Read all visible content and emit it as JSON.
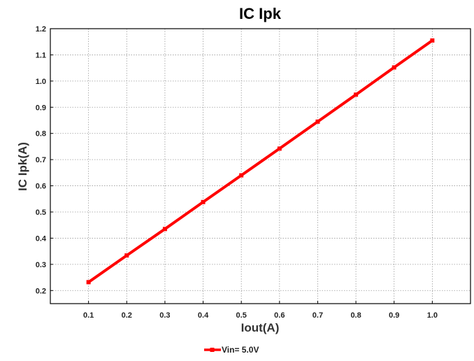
{
  "chart_data": {
    "type": "line",
    "title": "IC Ipk",
    "xlabel": "Iout(A)",
    "ylabel": "IC Ipk(A)",
    "x": [
      0.1,
      0.2,
      0.3,
      0.4,
      0.5,
      0.6,
      0.7,
      0.8,
      0.9,
      1.0
    ],
    "xlim": [
      0.0,
      1.1
    ],
    "ylim": [
      0.15,
      1.2
    ],
    "x_ticks": [
      "0.1",
      "0.2",
      "0.3",
      "0.4",
      "0.5",
      "0.6",
      "0.7",
      "0.8",
      "0.9",
      "1.0"
    ],
    "y_ticks": [
      "0.2",
      "0.3",
      "0.4",
      "0.5",
      "0.6",
      "0.7",
      "0.8",
      "0.9",
      "1.0",
      "1.1",
      "1.2"
    ],
    "grid": true,
    "legend_position": "bottom-center",
    "series": [
      {
        "name": "Vin= 5.0V",
        "color": "#ff0000",
        "values": [
          0.232,
          0.334,
          0.435,
          0.538,
          0.64,
          0.742,
          0.845,
          0.948,
          1.052,
          1.155
        ]
      }
    ]
  }
}
